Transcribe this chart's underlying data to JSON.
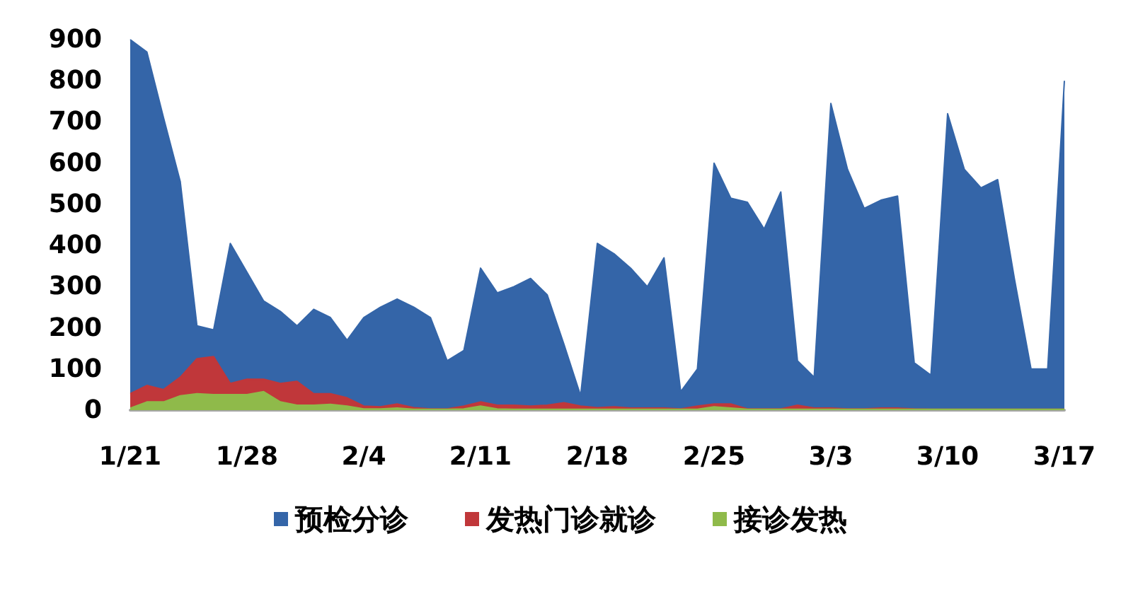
{
  "chart_data": {
    "type": "area",
    "categories": [
      "1/21",
      null,
      null,
      null,
      null,
      null,
      null,
      "1/28",
      null,
      null,
      null,
      null,
      null,
      null,
      "2/4",
      null,
      null,
      null,
      null,
      null,
      null,
      "2/11",
      null,
      null,
      null,
      null,
      null,
      null,
      "2/18",
      null,
      null,
      null,
      null,
      null,
      null,
      "2/25",
      null,
      null,
      null,
      null,
      null,
      null,
      "3/3",
      null,
      null,
      null,
      null,
      null,
      null,
      "3/10",
      null,
      null,
      null,
      null,
      null,
      null,
      "3/17"
    ],
    "series": [
      {
        "name": "预检分诊",
        "color": "#3465a8",
        "values": [
          900,
          870,
          710,
          555,
          205,
          195,
          405,
          335,
          265,
          240,
          205,
          245,
          225,
          170,
          225,
          250,
          270,
          250,
          225,
          120,
          145,
          345,
          285,
          300,
          320,
          280,
          160,
          35,
          405,
          380,
          345,
          300,
          370,
          45,
          100,
          600,
          515,
          505,
          440,
          530,
          120,
          80,
          745,
          585,
          490,
          510,
          520,
          115,
          85,
          720,
          585,
          540,
          560,
          320,
          100,
          100,
          800
        ]
      },
      {
        "name": "发热门诊就诊",
        "color": "#c0373a",
        "values": [
          40,
          60,
          50,
          80,
          125,
          130,
          65,
          75,
          75,
          65,
          70,
          40,
          40,
          30,
          10,
          8,
          15,
          6,
          3,
          3,
          10,
          20,
          12,
          12,
          10,
          12,
          18,
          10,
          6,
          8,
          5,
          5,
          5,
          3,
          10,
          15,
          15,
          3,
          3,
          3,
          12,
          5,
          5,
          3,
          3,
          5,
          5,
          3,
          2,
          2,
          2,
          2,
          2,
          2,
          2,
          2,
          2
        ]
      },
      {
        "name": "接诊发热",
        "color": "#8fba4a",
        "values": [
          5,
          20,
          20,
          35,
          40,
          38,
          38,
          38,
          45,
          20,
          12,
          12,
          14,
          10,
          3,
          3,
          5,
          2,
          2,
          2,
          3,
          10,
          3,
          2,
          2,
          2,
          2,
          2,
          2,
          2,
          2,
          2,
          2,
          2,
          2,
          8,
          5,
          2,
          2,
          2,
          2,
          2,
          2,
          2,
          2,
          2,
          2,
          2,
          2,
          2,
          2,
          2,
          2,
          2,
          2,
          2,
          2
        ]
      }
    ],
    "ylim": [
      0,
      900
    ],
    "yticks": [
      0,
      100,
      200,
      300,
      400,
      500,
      600,
      700,
      800,
      900
    ],
    "grid": false,
    "legend": "bottom"
  }
}
